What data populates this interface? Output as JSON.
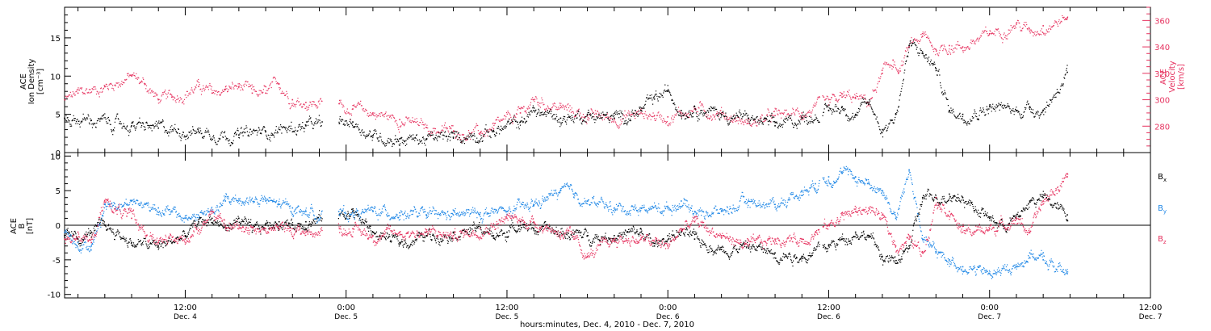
{
  "colors": {
    "black": "#000000",
    "pink": "#e6325f",
    "blue": "#1f87e6"
  },
  "x_axis": {
    "title": "hours:minutes, Dec.  4, 2010 - Dec.  7, 2010",
    "ticks": [
      {
        "t": 12,
        "time": "12:00",
        "day": "Dec. 4"
      },
      {
        "t": 24,
        "time": "0:00",
        "day": "Dec. 5"
      },
      {
        "t": 36,
        "time": "12:00",
        "day": "Dec. 5"
      },
      {
        "t": 48,
        "time": "0:00",
        "day": "Dec. 6"
      },
      {
        "t": 60,
        "time": "12:00",
        "day": "Dec. 6"
      },
      {
        "t": 72,
        "time": "0:00",
        "day": "Dec. 7"
      },
      {
        "t": 84,
        "time": "12:00",
        "day": "Dec. 7"
      }
    ]
  },
  "chart_data": [
    {
      "type": "scatter",
      "panel": "top",
      "xlim": [
        3,
        84
      ],
      "ylabel": [
        "ACE",
        "Ion Density",
        "[cm⁻³]"
      ],
      "ylim": [
        0,
        19
      ],
      "yticks": [
        0,
        5,
        10,
        15
      ],
      "ylabel_right": [
        "ACE",
        "Velocity",
        "[km/s]"
      ],
      "ylim_right": [
        260,
        370
      ],
      "yticks_right": [
        280,
        300,
        320,
        340,
        360
      ],
      "series": [
        {
          "name": "Ion Density",
          "color": "#000000",
          "axis": "left",
          "x": [
            3,
            5,
            8,
            10,
            13,
            16,
            18,
            21,
            23.5,
            24.5,
            26,
            28,
            30,
            32,
            35,
            37,
            38,
            40,
            42,
            44,
            46,
            47,
            48,
            49,
            50,
            52,
            54,
            56,
            58,
            60,
            61,
            62,
            63,
            64,
            65,
            66,
            67,
            68,
            69,
            70,
            72,
            74,
            75,
            76,
            77.8
          ],
          "y": [
            4.5,
            4.2,
            3.5,
            3.2,
            2.8,
            2.3,
            2.8,
            3.5,
            3.8,
            4,
            2.2,
            1.8,
            1.8,
            2,
            2.8,
            4,
            5.5,
            4.5,
            5,
            4.5,
            5.5,
            7,
            8,
            5.5,
            6,
            5,
            4.5,
            3.5,
            4.5,
            5.5,
            6,
            5,
            6.5,
            3,
            5,
            14,
            13,
            11,
            5.5,
            5,
            6,
            5.5,
            6,
            5.5,
            10.5
          ]
        },
        {
          "name": "Velocity",
          "color": "#e6325f",
          "axis": "right",
          "x": [
            3,
            4,
            6,
            8,
            9,
            10,
            11,
            13,
            14,
            15,
            16,
            17,
            18,
            19,
            20,
            21,
            23.5,
            24.5,
            26,
            28,
            30,
            32,
            34,
            35,
            37,
            38,
            40,
            42,
            44,
            46,
            47,
            48,
            49,
            50,
            52,
            54,
            56,
            58,
            60,
            61,
            62,
            63,
            64,
            64.8,
            65.2,
            66,
            67,
            68,
            69,
            70,
            72,
            74,
            75,
            76,
            77.8
          ],
          "y": [
            300,
            305,
            310,
            318,
            312,
            300,
            302,
            310,
            305,
            308,
            310,
            305,
            305,
            312,
            300,
            298,
            297,
            293,
            290,
            285,
            279,
            276,
            275,
            278,
            290,
            300,
            294,
            288,
            286,
            290,
            288,
            287,
            290,
            293,
            290,
            282,
            288,
            290,
            296,
            302,
            301,
            298,
            320,
            330,
            320,
            340,
            348,
            338,
            341,
            340,
            350,
            358,
            352,
            356,
            362
          ]
        }
      ]
    },
    {
      "type": "scatter",
      "panel": "bottom",
      "xlim": [
        3,
        84
      ],
      "ylabel": [
        "ACE",
        "B",
        "[nT]"
      ],
      "ylim": [
        -10.5,
        10.5
      ],
      "yticks": [
        -10,
        -5,
        0,
        5,
        10
      ],
      "series": [
        {
          "name": "Bx",
          "color": "#000000",
          "x": [
            3,
            4,
            5,
            6,
            8,
            10,
            12,
            13,
            14,
            15,
            16,
            17,
            18,
            19,
            20,
            21,
            23.5,
            24.5,
            26,
            28,
            30,
            32,
            34,
            35,
            36,
            37,
            38,
            40,
            42,
            44,
            46,
            47,
            48,
            49,
            50,
            52,
            54,
            56,
            58,
            60,
            61,
            62,
            63,
            64,
            65,
            66,
            67,
            68,
            69,
            70,
            72,
            73,
            74,
            75,
            76,
            77.8
          ],
          "y": [
            -1.5,
            -2,
            -1,
            0,
            -2.5,
            -3,
            -1.5,
            0.5,
            1,
            -0.5,
            1,
            -1,
            0,
            0.5,
            0,
            0.5,
            1.5,
            2,
            -1,
            -2.5,
            -1.5,
            -1,
            -0.5,
            -1.5,
            -1,
            0.5,
            -0.5,
            -1,
            -1.5,
            -1.5,
            -1,
            -3,
            -1.5,
            -1,
            -2,
            -3.5,
            -3,
            -4,
            -4.5,
            -3,
            -2,
            -1,
            -1.5,
            -4.5,
            -5.5,
            -3,
            4,
            4,
            4.5,
            4,
            1,
            0,
            1,
            3.5,
            4,
            1.5
          ]
        },
        {
          "name": "By",
          "color": "#1f87e6",
          "x": [
            3,
            4,
            5,
            6,
            8,
            10,
            12,
            14,
            15,
            16,
            18,
            19,
            20,
            21,
            23.5,
            24.5,
            26,
            28,
            30,
            32,
            34,
            36,
            38,
            40,
            41,
            42,
            44,
            46,
            48,
            49,
            50,
            52,
            54,
            56,
            58,
            59,
            60,
            61,
            62,
            63,
            64,
            65,
            66,
            67,
            68,
            69,
            70,
            72,
            74,
            75,
            76,
            77.8
          ],
          "y": [
            -1,
            -2.5,
            -3,
            3,
            3.5,
            2.5,
            1,
            2,
            3.5,
            3.8,
            3.5,
            3,
            2.5,
            2,
            1.5,
            1.8,
            2,
            1.8,
            1.5,
            1.5,
            1.8,
            2,
            3,
            5,
            4.5,
            3.5,
            2.5,
            2.5,
            2.5,
            3.5,
            2,
            2,
            3.5,
            3,
            5,
            6,
            7,
            7.5,
            7,
            6,
            5,
            1,
            8,
            -2,
            -4,
            -5,
            -6,
            -7,
            -6,
            -4,
            -5,
            -7
          ]
        },
        {
          "name": "Bz",
          "color": "#e6325f",
          "x": [
            3,
            4,
            5,
            6,
            8,
            10,
            12,
            14,
            15,
            16,
            18,
            19,
            20,
            21,
            23.5,
            24.5,
            26,
            28,
            30,
            32,
            34,
            36,
            38,
            40,
            41,
            42,
            44,
            46,
            48,
            49,
            50,
            52,
            54,
            56,
            58,
            59,
            60,
            61,
            62,
            63,
            64,
            65,
            66,
            67,
            68,
            69,
            70,
            72,
            74,
            75,
            76,
            77.8
          ],
          "y": [
            -2,
            -1,
            -2.5,
            3.5,
            1,
            -2.5,
            -2,
            2,
            -0.5,
            0,
            -0.5,
            -0.5,
            -0.5,
            -1,
            -0.5,
            -0.5,
            -1.5,
            -1,
            -1,
            -1.5,
            -0.5,
            1,
            0.5,
            -1,
            -2,
            -4.5,
            -2,
            -2,
            -3,
            -0.5,
            0.5,
            -1.5,
            -3,
            -2,
            -2,
            -1,
            0,
            1.5,
            2,
            2.5,
            1,
            -3,
            -2,
            -4,
            4,
            2,
            -1,
            -0.5,
            1,
            -1,
            3.5,
            7
          ]
        }
      ],
      "legend": [
        "B",
        "B",
        "B"
      ],
      "legend_subscripts": [
        "x",
        "y",
        "z"
      ]
    }
  ]
}
